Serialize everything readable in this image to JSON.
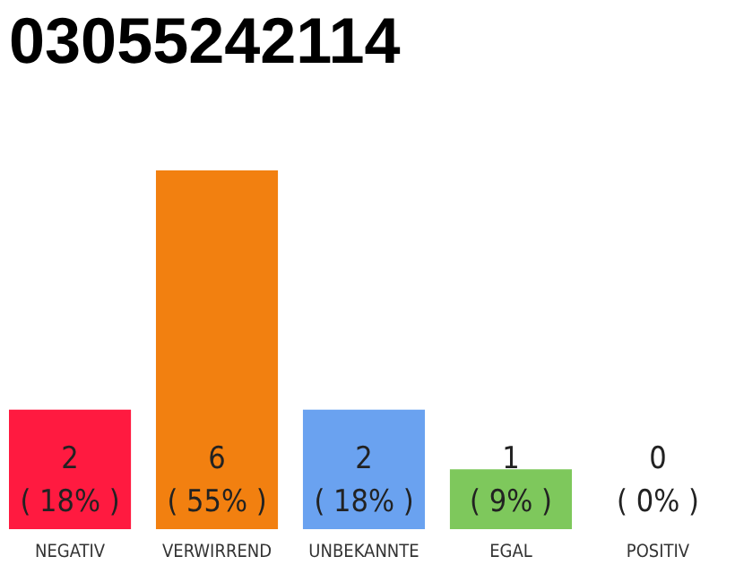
{
  "chart_data": {
    "type": "bar",
    "title": "03055242114",
    "categories": [
      "NEGATIV",
      "VERWIRREND",
      "UNBEKANNTE",
      "EGAL",
      "POSITIV"
    ],
    "values": [
      2,
      6,
      2,
      1,
      0
    ],
    "colors": [
      "#ff1a40",
      "#f28010",
      "#6aa2f0",
      "#7ec85c",
      "#dddddd"
    ],
    "value_labels": [
      "2\n( 18% )",
      "6\n( 55% )",
      "2\n( 18% )",
      "1\n( 9% )",
      "0\n( 0% )"
    ]
  }
}
